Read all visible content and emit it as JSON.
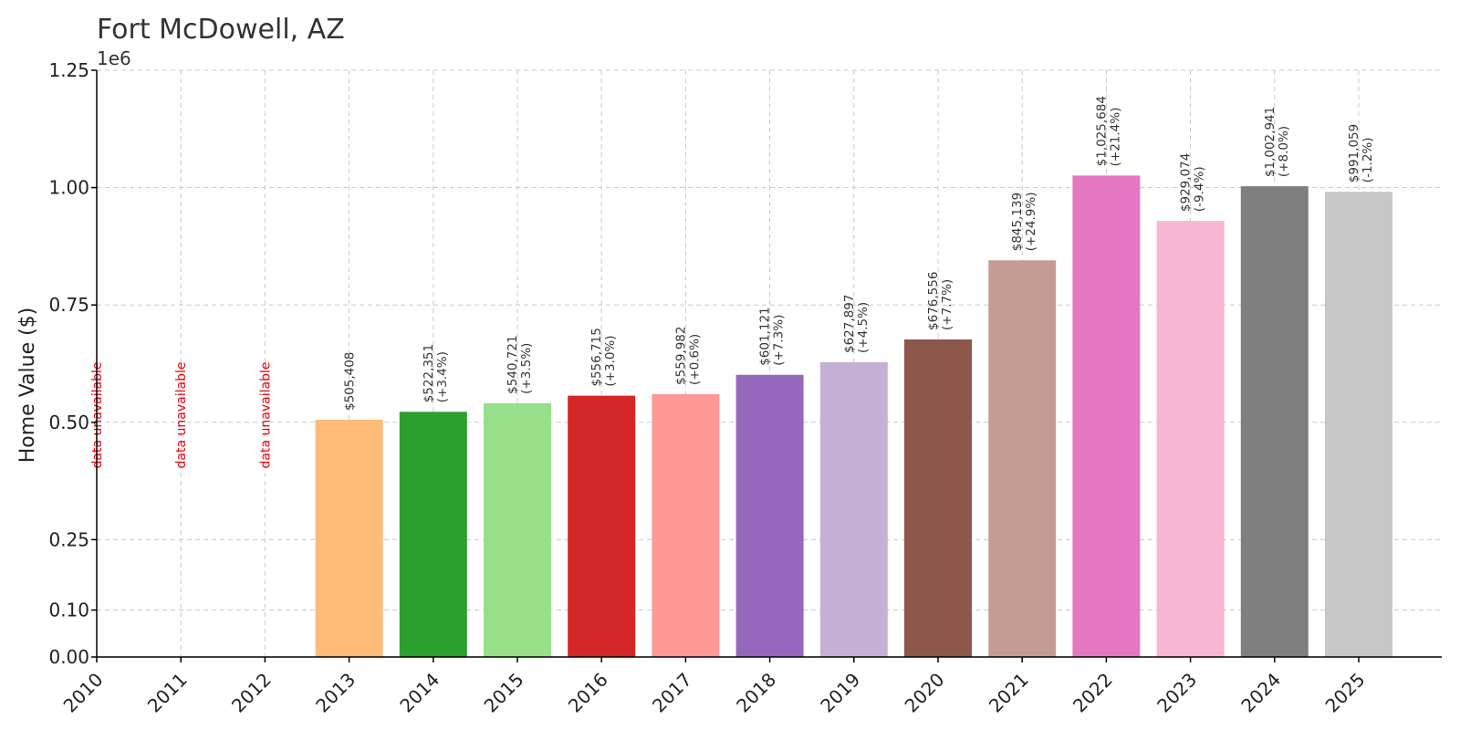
{
  "chart_data": {
    "type": "bar",
    "title": "Fort McDowell, AZ",
    "xlabel": "",
    "ylabel": "Home Value ($)",
    "y_offset_label": "1e6",
    "ylim": [
      0,
      1250000
    ],
    "y_ticks": [
      0,
      100000,
      250000,
      500000,
      750000,
      1000000,
      1250000
    ],
    "y_tick_labels": [
      "0.00",
      "0.10",
      "0.25",
      "0.50",
      "0.75",
      "1.00",
      "1.25"
    ],
    "grid": true,
    "categories": [
      "2010",
      "2011",
      "2012",
      "2013",
      "2014",
      "2015",
      "2016",
      "2017",
      "2018",
      "2019",
      "2020",
      "2021",
      "2022",
      "2023",
      "2024",
      "2025"
    ],
    "values": [
      null,
      null,
      null,
      505408,
      522351,
      540721,
      556715,
      559982,
      601121,
      627897,
      676556,
      845139,
      1025684,
      929074,
      1002941,
      991059
    ],
    "value_labels": [
      "",
      "",
      "",
      "$505,408",
      "$522,351",
      "$540,721",
      "$556,715",
      "$559,982",
      "$601,121",
      "$627,897",
      "$676,556",
      "$845,139",
      "$1,025,684",
      "$929,074",
      "$1,002,941",
      "$991,059"
    ],
    "change_labels": [
      "",
      "",
      "",
      "",
      "(+3.4%)",
      "(+3.5%)",
      "(+3.0%)",
      "(+0.6%)",
      "(+7.3%)",
      "(+4.5%)",
      "(+7.7%)",
      "(+24.9%)",
      "(+21.4%)",
      "(-9.4%)",
      "(+8.0%)",
      "(-1.2%)"
    ],
    "unavailable_label": "data unavailable",
    "colors": [
      "#1f77b4",
      "#aec7e8",
      "#ff7f0e",
      "#ffbb78",
      "#2ca02c",
      "#98df8a",
      "#d62728",
      "#ff9896",
      "#9467bd",
      "#c5b0d5",
      "#8c564b",
      "#c49c94",
      "#e377c2",
      "#f7b6d2",
      "#7f7f7f",
      "#c7c7c7"
    ],
    "unavailable_color": "#e8000b"
  }
}
